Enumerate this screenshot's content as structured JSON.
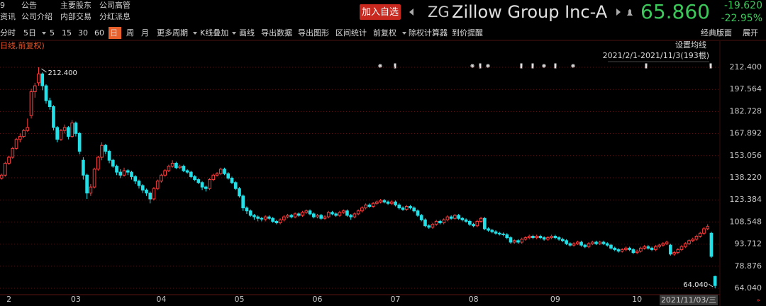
{
  "header": {
    "menu": [
      [
        "9",
        "公告",
        "主要股东",
        "公司高管"
      ],
      [
        "资讯",
        "公司介绍",
        "内部交易",
        "分红派息"
      ]
    ],
    "watch_button": "加入自选",
    "symbol": "ZG",
    "name": "Zillow Group Inc-A",
    "price": "65.860",
    "change": "-19.620",
    "change_pct": "-22.95%"
  },
  "toolbar": {
    "items": [
      "分时",
      "5日",
      "5",
      "15",
      "30",
      "60",
      "日",
      "周",
      "月",
      "更多周期",
      "K线叠加",
      "画线",
      "导出数据",
      "导出图形",
      "区间统计",
      "前复权",
      "除权计算器",
      "到价提醒"
    ],
    "selected_index": 6,
    "right": [
      "经典版面",
      "展开"
    ]
  },
  "chart_data": {
    "type": "candlestick",
    "subtitle": "日线,前复权)",
    "ma_button": "设置均线",
    "range_label": "2021/2/1-2021/11/3(193根)",
    "cursor_date_label": "2021/11/03/三",
    "up_color": "#ff3c3c",
    "down_color": "#22e0e8",
    "grid": true,
    "ylim": [
      59.76,
      228.1
    ],
    "yticks": [
      {
        "value": 212.4,
        "label": "212.400"
      },
      197.564,
      182.728,
      167.892,
      153.056,
      {
        "value": 138.22,
        "label": "138.220"
      },
      123.384,
      108.548,
      93.712,
      78.876,
      {
        "value": 64.04,
        "label": "64.040"
      }
    ],
    "xlim": [
      -0.4,
      193.3
    ],
    "xticks": [
      {
        "value": 2,
        "label": "2"
      },
      {
        "value": 20,
        "label": "03"
      },
      {
        "value": 43,
        "label": "04"
      },
      {
        "value": 64,
        "label": "05"
      },
      {
        "value": 85,
        "label": "06"
      },
      {
        "value": 106,
        "label": "07"
      },
      {
        "value": 127,
        "label": "08"
      },
      {
        "value": 149,
        "label": "09"
      },
      {
        "value": 171,
        "label": "10"
      }
    ],
    "annotations": [
      {
        "index": 10,
        "value": 212.4,
        "label": "212.400"
      },
      {
        "index": 192,
        "value": 64.04,
        "label": "64.040"
      }
    ],
    "open": [
      138,
      140,
      148,
      152,
      158,
      164,
      166,
      170,
      180,
      196,
      202,
      208,
      200,
      190,
      186,
      172,
      164,
      170,
      172,
      166,
      175,
      168,
      150,
      140,
      128,
      132,
      144,
      152,
      160,
      156,
      150,
      146,
      142,
      140,
      143,
      142,
      139,
      136,
      133,
      130,
      128,
      124,
      131,
      136,
      140,
      143,
      146,
      148,
      145,
      146,
      143,
      142,
      139,
      137,
      135,
      132,
      131,
      137,
      140,
      141,
      144,
      141,
      138,
      135,
      131,
      126,
      118,
      116,
      113,
      112,
      111,
      110.5,
      112,
      111,
      109,
      108,
      110,
      112,
      113,
      112,
      114,
      113,
      115,
      116,
      114,
      112,
      113,
      111,
      112,
      115,
      114,
      113,
      115,
      116,
      113,
      112,
      114,
      116,
      118,
      120,
      119,
      121,
      122,
      123,
      122,
      121,
      122,
      120,
      118,
      117,
      119,
      118,
      116,
      113,
      110,
      106,
      105,
      107,
      109,
      108,
      110,
      112,
      111,
      113,
      111,
      110,
      109,
      107,
      106,
      109,
      111,
      104,
      103,
      102,
      101,
      100.5,
      100,
      98,
      95,
      96,
      95,
      97,
      98,
      99,
      98,
      99,
      98,
      97,
      98,
      99,
      98,
      97,
      96,
      94,
      93,
      94,
      95,
      93,
      92,
      94,
      95,
      94,
      95,
      94,
      93,
      91,
      90,
      89,
      90,
      91,
      90,
      88,
      89,
      91,
      92,
      91,
      90,
      92,
      93,
      94,
      93,
      87,
      88,
      90,
      92,
      94,
      96,
      97,
      99,
      101,
      104,
      101,
      72
    ],
    "high": [
      141,
      149,
      153,
      159,
      165,
      168,
      171,
      178,
      198,
      202,
      212.4,
      209,
      201,
      192,
      187,
      173,
      171,
      174,
      173,
      177,
      176,
      169,
      152,
      141,
      134,
      145,
      153,
      162,
      161,
      157,
      151,
      147,
      144,
      145,
      144,
      143,
      140,
      137,
      134,
      131,
      129,
      132,
      137,
      141,
      144,
      147,
      150,
      149,
      147,
      147,
      144,
      143,
      140,
      138,
      136,
      133,
      138,
      141,
      142,
      145,
      145,
      142,
      139,
      136,
      132,
      127,
      119,
      117,
      114,
      113,
      112,
      113,
      113,
      112,
      110,
      111,
      113,
      114,
      114,
      115,
      115,
      116,
      117,
      117,
      115,
      114,
      114,
      113,
      116,
      116,
      115,
      116,
      117,
      117,
      114,
      115,
      117,
      119,
      121,
      121,
      122,
      123,
      124,
      124,
      123,
      123,
      123,
      121,
      119,
      120,
      120,
      119,
      117,
      114,
      111,
      107,
      108,
      110,
      110,
      111,
      113,
      113,
      114,
      114,
      112,
      111,
      110,
      108,
      110,
      112,
      112,
      105,
      104,
      103,
      102,
      101.5,
      101,
      99,
      97,
      97,
      98,
      99,
      100,
      100,
      100,
      100,
      99,
      99,
      100,
      100,
      99,
      98,
      97,
      95,
      95,
      96,
      96,
      94,
      95,
      96,
      96,
      96,
      96,
      95,
      94,
      92,
      91,
      91,
      92,
      92,
      91,
      90,
      92,
      93,
      93,
      92,
      93,
      94,
      95,
      96,
      94,
      89,
      91,
      93,
      95,
      97,
      98,
      100,
      102,
      105,
      107,
      102,
      72.5
    ],
    "low": [
      137,
      139,
      147,
      151,
      157,
      162,
      165,
      169,
      178,
      192,
      200,
      197,
      188,
      184,
      170,
      162,
      163,
      168,
      164,
      165,
      166,
      154,
      137,
      124,
      126,
      131,
      143,
      150,
      154,
      148,
      145,
      140,
      138,
      139,
      140,
      137,
      134,
      131,
      128,
      126,
      121,
      123,
      130,
      135,
      139,
      142,
      145,
      144,
      144,
      142,
      141,
      138,
      136,
      134,
      130,
      129,
      130,
      136,
      139,
      140,
      140,
      137,
      134,
      130,
      125,
      116,
      114,
      112,
      110,
      109,
      109,
      109,
      110,
      108,
      107,
      107,
      109,
      111,
      111,
      111,
      112,
      112,
      114,
      113,
      111,
      111,
      110,
      110,
      111,
      113,
      112,
      112,
      114,
      112,
      110,
      111,
      113,
      115,
      117,
      118,
      118,
      120,
      121,
      121,
      120,
      120,
      119,
      117,
      116,
      116,
      117,
      115,
      112,
      109,
      105,
      104,
      104,
      106,
      107,
      107,
      109,
      110,
      110,
      110,
      109,
      108,
      106,
      105,
      105,
      108,
      103,
      102,
      101,
      100,
      99.5,
      99,
      97,
      94,
      94,
      94,
      94,
      96,
      97,
      97,
      97,
      97,
      96,
      96,
      97,
      97,
      96,
      95,
      93,
      92,
      92,
      93,
      92,
      91,
      91,
      93,
      93,
      93,
      93,
      92,
      90,
      89,
      88,
      88,
      89,
      89,
      87,
      87,
      88,
      90,
      90,
      89,
      89,
      91,
      92,
      93,
      86,
      86,
      87,
      89,
      91,
      93,
      95,
      96,
      98,
      100,
      103,
      84.5,
      64.04
    ],
    "close": [
      140,
      148,
      152,
      158,
      164,
      166,
      170,
      172,
      196,
      200,
      208,
      200,
      190,
      186,
      172,
      164,
      170,
      172,
      166,
      175,
      168,
      156,
      140,
      128,
      132,
      144,
      152,
      160,
      156,
      150,
      146,
      142,
      140,
      143,
      142,
      139,
      136,
      133,
      130,
      128,
      124,
      131,
      136,
      140,
      143,
      146,
      148,
      145,
      146,
      143,
      142,
      139,
      137,
      135,
      132,
      131,
      137,
      140,
      141,
      144,
      141,
      138,
      135,
      131,
      126,
      118,
      116,
      113,
      112,
      111,
      110.5,
      112,
      111,
      109,
      108,
      110,
      112,
      113,
      112,
      114,
      113,
      115,
      116,
      114,
      112,
      113,
      111,
      112,
      115,
      114,
      113,
      115,
      116,
      113,
      112,
      114,
      116,
      118,
      120,
      119,
      121,
      122,
      123,
      122,
      121,
      122,
      120,
      118,
      117,
      119,
      118,
      116,
      113,
      110,
      106,
      105,
      107,
      109,
      108,
      110,
      112,
      111,
      113,
      111,
      110,
      109,
      107,
      106,
      109,
      111,
      104,
      103,
      102,
      101,
      100.5,
      100,
      98,
      95,
      96,
      95,
      97,
      98,
      99,
      98,
      99,
      98,
      97,
      98,
      99,
      98,
      97,
      96,
      94,
      93,
      94,
      95,
      93,
      92,
      94,
      95,
      94,
      95,
      94,
      93,
      91,
      90,
      89,
      90,
      91,
      90,
      88,
      89,
      91,
      92,
      91,
      90,
      92,
      93,
      94,
      95,
      87,
      88,
      90,
      92,
      94,
      96,
      97,
      99,
      101,
      104,
      105.5,
      85.48,
      65.86
    ]
  }
}
